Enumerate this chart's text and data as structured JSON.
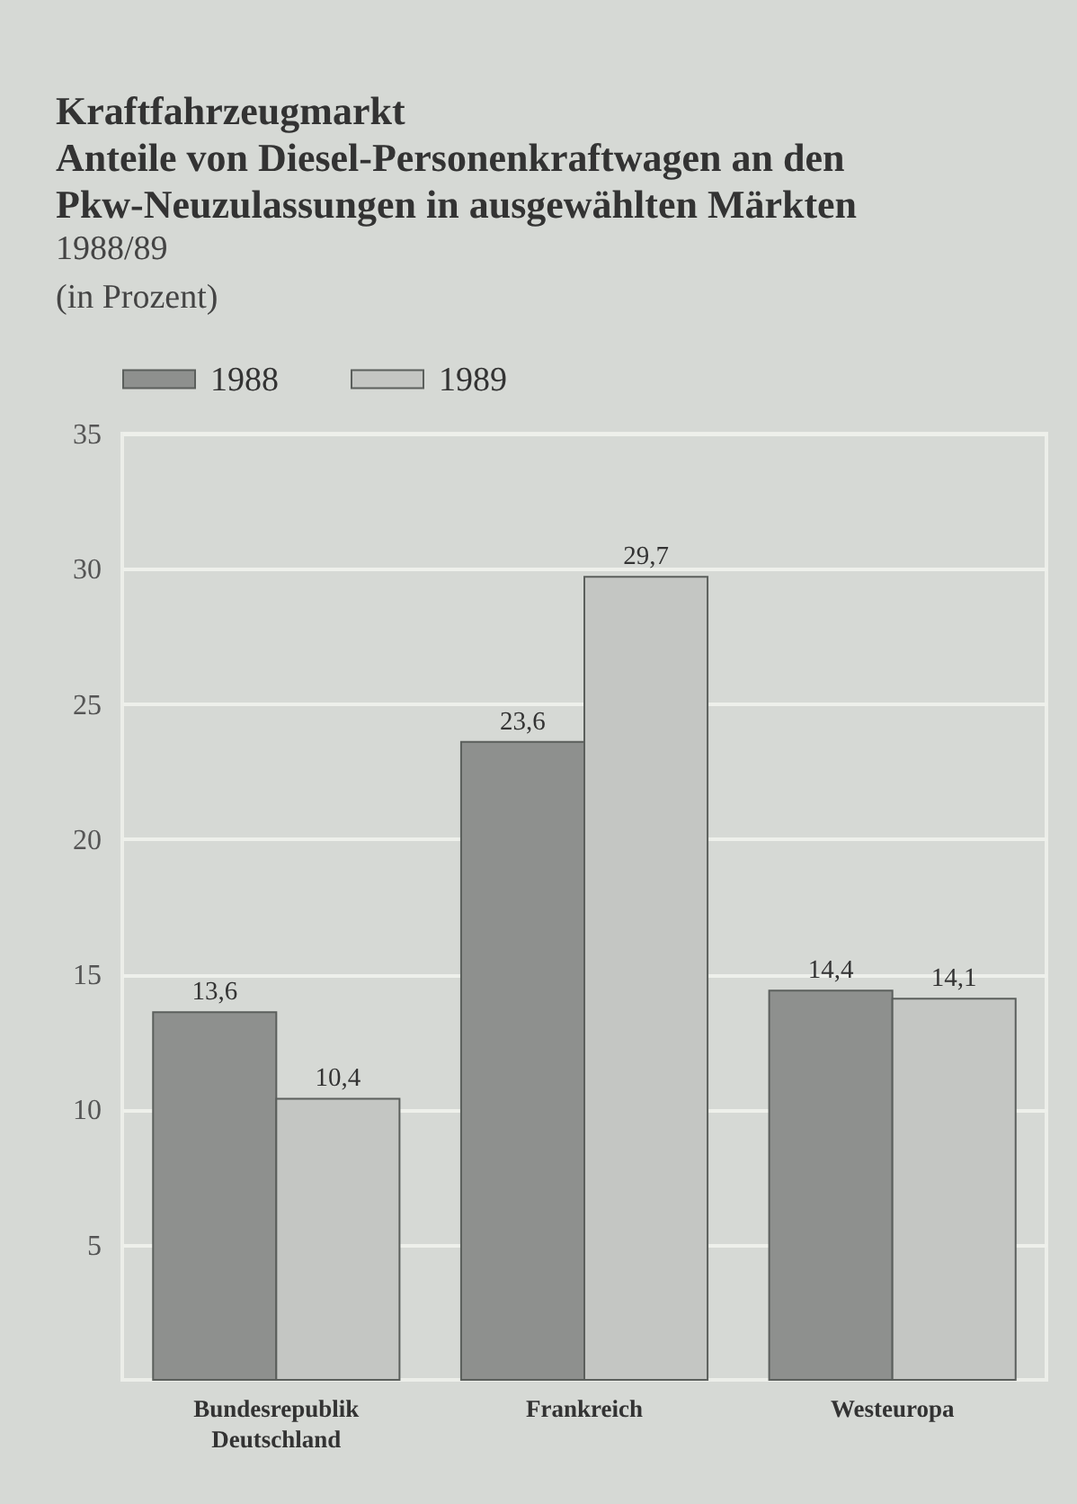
{
  "chart_data": {
    "type": "bar",
    "title": "Kraftfahrzeugmarkt",
    "subtitle": "Anteile von Diesel-Personenkraftwagen an den Pkw-Neuzulassungen in ausgewählten Märkten",
    "annotations": [
      "1988/89"
    ],
    "ylabel": "(in Prozent)",
    "categories": [
      "Bundesrepublik Deutschland",
      "Frankreich",
      "Westeuropa"
    ],
    "series": [
      {
        "name": "1988",
        "color": "#8e908e",
        "values": [
          13.6,
          23.6,
          14.4
        ],
        "value_labels": [
          "13,6",
          "23,6",
          "14,4"
        ]
      },
      {
        "name": "1989",
        "color": "#c4c6c3",
        "values": [
          10.4,
          29.7,
          14.1
        ],
        "value_labels": [
          "10,4",
          "29,7",
          "14,1"
        ]
      }
    ],
    "ylim": [
      0,
      35
    ],
    "yticks": [
      5,
      10,
      15,
      20,
      25,
      30,
      35
    ],
    "grid": "y",
    "legend": "top left"
  }
}
